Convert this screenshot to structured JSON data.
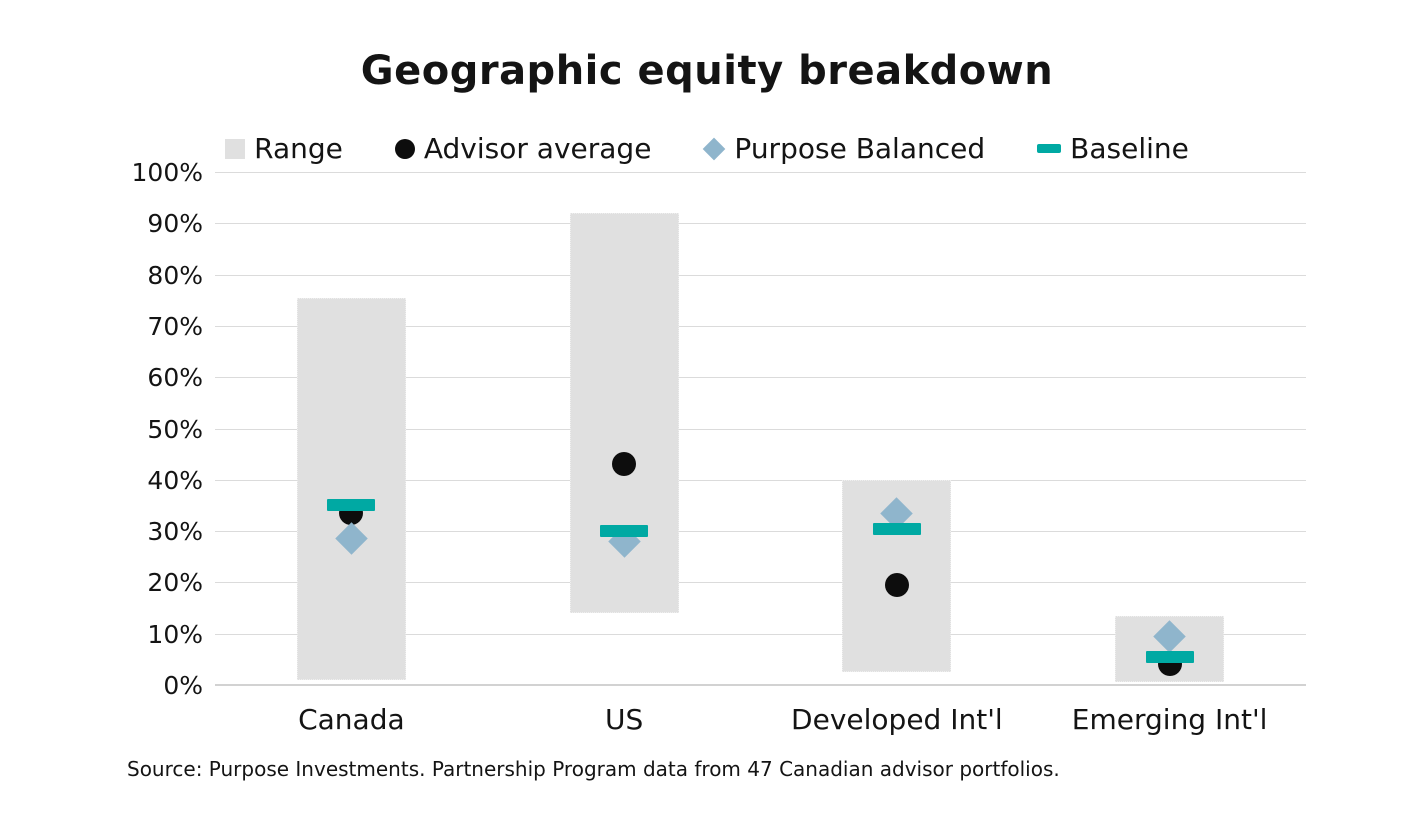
{
  "chart_data": {
    "type": "bar",
    "title": "Geographic equity breakdown",
    "categories": [
      "Canada",
      "US",
      "Developed Int'l",
      "Emerging Int'l"
    ],
    "series": [
      {
        "name": "Range",
        "role": "range",
        "marker": "square",
        "color": "#E0E0E0",
        "low": [
          1,
          14,
          2.5,
          0.5
        ],
        "high": [
          75.5,
          92,
          40,
          13.5
        ]
      },
      {
        "name": "Advisor average",
        "role": "advisor",
        "marker": "circle",
        "color": "#0D0D0D",
        "values": [
          33.5,
          43,
          19.5,
          4
        ]
      },
      {
        "name": "Purpose Balanced",
        "role": "purpose",
        "marker": "diamond",
        "color": "#8FB5CC",
        "values": [
          28.5,
          28,
          33.5,
          9.5
        ]
      },
      {
        "name": "Baseline",
        "role": "baseline",
        "marker": "dash",
        "color": "#00A9A3",
        "values": [
          35,
          30,
          30.5,
          5.5
        ]
      }
    ],
    "xlabel": "",
    "ylabel": "",
    "ylim": [
      0,
      100
    ],
    "yticks": [
      {
        "v": 0,
        "label": "0%"
      },
      {
        "v": 10,
        "label": "10%"
      },
      {
        "v": 20,
        "label": "20%"
      },
      {
        "v": 30,
        "label": "30%"
      },
      {
        "v": 40,
        "label": "40%"
      },
      {
        "v": 50,
        "label": "50%"
      },
      {
        "v": 60,
        "label": "60%"
      },
      {
        "v": 70,
        "label": "70%"
      },
      {
        "v": 80,
        "label": "80%"
      },
      {
        "v": 90,
        "label": "90%"
      },
      {
        "v": 100,
        "label": "100%"
      }
    ],
    "grid": true,
    "legend_position": "top"
  },
  "source_note": "Source: Purpose Investments. Partnership Program data from 47 Canadian advisor portfolios."
}
